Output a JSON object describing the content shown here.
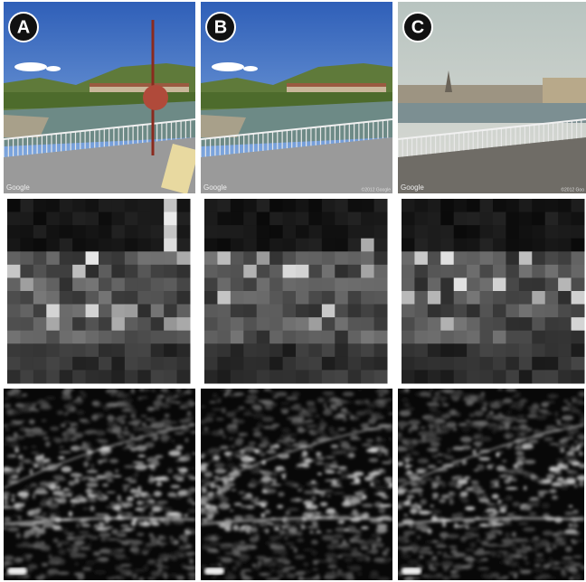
{
  "panels": [
    {
      "label": "A",
      "watermark": "Google"
    },
    {
      "label": "B",
      "watermark": "Google",
      "copyright": "©2012 Google"
    },
    {
      "label": "C",
      "watermark": "Google",
      "copyright": "©2012 Goo"
    }
  ]
}
